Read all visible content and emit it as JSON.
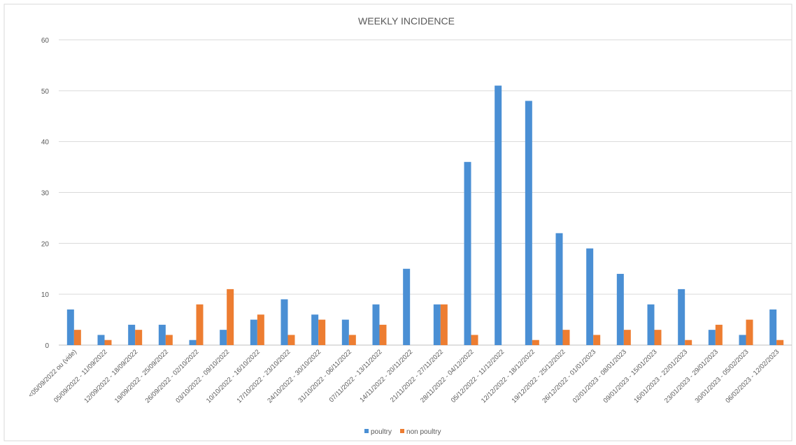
{
  "chart_data": {
    "type": "bar",
    "title": "WEEKLY INCIDENCE",
    "categories": [
      "<05/09/2022 ou (vide)",
      "05/09/2022 - 11/09/2022",
      "12/09/2022 - 18/09/2022",
      "19/09/2022 - 25/09/2022",
      "26/09/2022 - 02/10/2022",
      "03/10/2022 - 09/10/2022",
      "10/10/2022 - 16/10/2022",
      "17/10/2022 - 23/10/2022",
      "24/10/2022 - 30/10/2022",
      "31/10/2022 - 06/11/2022",
      "07/11/2022 - 13/11/2022",
      "14/11/2022 - 20/11/2022",
      "21/11/2022 - 27/11/2022",
      "28/11/2022 - 04/12/2022",
      "05/12/2022 - 11/12/2022",
      "12/12/2022 - 18/12/2022",
      "19/12/2022 - 25/12/2022",
      "26/12/2022 - 01/01/2023",
      "02/01/2023 - 08/01/2023",
      "09/01/2023 - 15/01/2023",
      "16/01/2023 - 22/01/2023",
      "23/01/2023 - 29/01/2023",
      "30/01/2023 - 05/02/2023",
      "06/02/2023 - 12/02/2023"
    ],
    "series": [
      {
        "name": "poultry",
        "color": "#4a8fd4",
        "values": [
          7,
          2,
          4,
          4,
          1,
          3,
          5,
          9,
          6,
          5,
          8,
          15,
          8,
          36,
          51,
          48,
          22,
          19,
          14,
          8,
          11,
          3,
          2,
          7
        ]
      },
      {
        "name": "non poultry",
        "color": "#ed7d31",
        "values": [
          3,
          1,
          3,
          2,
          8,
          11,
          6,
          2,
          5,
          2,
          4,
          0,
          8,
          2,
          0,
          1,
          3,
          2,
          3,
          3,
          1,
          4,
          5,
          1
        ]
      }
    ],
    "ylim": [
      0,
      60
    ],
    "yticks": [
      0,
      10,
      20,
      30,
      40,
      50,
      60
    ],
    "grid": true,
    "legend_position": "bottom-center"
  }
}
